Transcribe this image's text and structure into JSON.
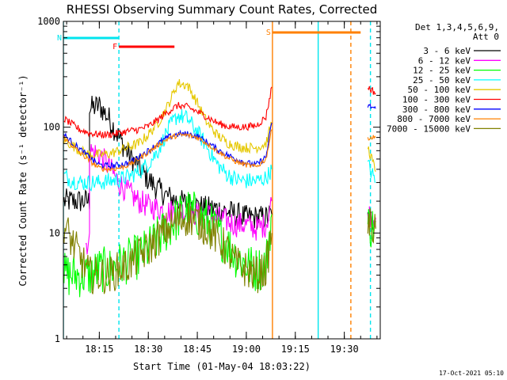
{
  "chart_data": {
    "type": "line",
    "title": "RHESSI Observing Summary Count Rates, Corrected",
    "xlabel": "Start Time (01-May-04 18:03:22)",
    "ylabel": "Corrected Count Rate (s⁻¹ detector⁻¹)",
    "y_scale": "log",
    "ylim": [
      1,
      1000
    ],
    "xlim_minutes_clock": [
      "18:04:00",
      "19:41:00"
    ],
    "x_ticks": [
      "18:15",
      "18:30",
      "18:45",
      "19:00",
      "19:15",
      "19:30"
    ],
    "y_ticks": [
      "1",
      "10",
      "100",
      "1000"
    ],
    "legend_header": [
      "Det 1,3,4,5,6,9,",
      "Att 0"
    ],
    "legend_position": "right",
    "footer_date": "17-Oct-2021 05:10",
    "flags": [
      {
        "label": "N",
        "color": "#00e5ee",
        "start": "18:03",
        "end": "18:21"
      },
      {
        "label": "F",
        "color": "#ff0000",
        "start": "18:21",
        "end": "18:38"
      },
      {
        "label": "S",
        "color": "#ff8000",
        "start": "19:08",
        "end": "19:35"
      }
    ],
    "vertical_lines": [
      {
        "time": "18:04",
        "color": "#00e5ee",
        "style": "solid"
      },
      {
        "time": "18:21",
        "color": "#00e5ee",
        "style": "dashed"
      },
      {
        "time": "19:08",
        "color": "#ff8000",
        "style": "solid"
      },
      {
        "time": "19:22",
        "color": "#00e5ee",
        "style": "solid"
      },
      {
        "time": "19:32",
        "color": "#ff8000",
        "style": "dashed"
      },
      {
        "time": "19:38",
        "color": "#00e5ee",
        "style": "dashed"
      }
    ],
    "series": [
      {
        "name": "3 - 6 keV",
        "color": "#000000",
        "noise": 0.12,
        "segments": [
          [
            [
              18.07,
              20
            ],
            [
              18.2,
              20
            ],
            [
              18.2,
              150
            ],
            [
              18.25,
              160
            ],
            [
              18.3,
              120
            ],
            [
              18.35,
              80
            ],
            [
              18.4,
              55
            ],
            [
              18.45,
              42
            ],
            [
              18.5,
              32
            ],
            [
              18.55,
              26
            ],
            [
              18.6,
              22
            ],
            [
              18.65,
              20
            ],
            [
              18.7,
              19
            ],
            [
              18.75,
              18
            ],
            [
              18.8,
              17
            ],
            [
              18.85,
              17
            ],
            [
              18.9,
              16
            ],
            [
              18.95,
              15
            ],
            [
              19.0,
              14
            ],
            [
              19.05,
              14
            ],
            [
              19.1,
              14
            ],
            [
              19.13,
              15
            ]
          ],
          [
            [
              19.62,
              14
            ],
            [
              19.66,
              13
            ]
          ]
        ]
      },
      {
        "name": "6 - 12 keV",
        "color": "#ff00ff",
        "noise": 0.12,
        "segments": [
          [
            [
              18.18,
              8
            ],
            [
              18.2,
              8
            ],
            [
              18.2,
              60
            ],
            [
              18.25,
              55
            ],
            [
              18.3,
              42
            ],
            [
              18.35,
              30
            ],
            [
              18.4,
              24
            ],
            [
              18.45,
              20
            ],
            [
              18.5,
              18
            ],
            [
              18.55,
              17
            ],
            [
              18.6,
              16
            ],
            [
              18.65,
              16
            ],
            [
              18.7,
              16
            ],
            [
              18.75,
              15
            ],
            [
              18.8,
              15
            ],
            [
              18.85,
              14
            ],
            [
              18.9,
              13
            ],
            [
              18.95,
              12
            ],
            [
              19.0,
              12
            ],
            [
              19.05,
              11
            ],
            [
              19.1,
              12
            ],
            [
              19.13,
              20
            ]
          ],
          [
            [
              19.62,
              15
            ],
            [
              19.66,
              14
            ]
          ]
        ]
      },
      {
        "name": "12 - 25 keV",
        "color": "#00ff00",
        "noise": 0.22,
        "segments": [
          [
            [
              18.07,
              4
            ],
            [
              18.15,
              4
            ],
            [
              18.2,
              4
            ],
            [
              18.25,
              4.5
            ],
            [
              18.3,
              4.5
            ],
            [
              18.35,
              5
            ],
            [
              18.4,
              5.5
            ],
            [
              18.45,
              6
            ],
            [
              18.5,
              7
            ],
            [
              18.55,
              9
            ],
            [
              18.6,
              11
            ],
            [
              18.65,
              14
            ],
            [
              18.7,
              16
            ],
            [
              18.75,
              15
            ],
            [
              18.8,
              13
            ],
            [
              18.85,
              10
            ],
            [
              18.9,
              8
            ],
            [
              18.95,
              6
            ],
            [
              19.0,
              5
            ],
            [
              19.05,
              4.5
            ],
            [
              19.1,
              5
            ],
            [
              19.13,
              15
            ]
          ],
          [
            [
              19.62,
              12
            ],
            [
              19.66,
              11
            ]
          ]
        ]
      },
      {
        "name": "25 - 50 keV",
        "color": "#00ffff",
        "noise": 0.08,
        "segments": [
          [
            [
              18.07,
              35
            ],
            [
              18.1,
              32
            ],
            [
              18.15,
              30
            ],
            [
              18.2,
              30
            ],
            [
              18.25,
              30
            ],
            [
              18.3,
              31
            ],
            [
              18.35,
              32
            ],
            [
              18.4,
              34
            ],
            [
              18.45,
              38
            ],
            [
              18.5,
              45
            ],
            [
              18.55,
              60
            ],
            [
              18.6,
              95
            ],
            [
              18.65,
              130
            ],
            [
              18.7,
              120
            ],
            [
              18.75,
              90
            ],
            [
              18.8,
              65
            ],
            [
              18.85,
              45
            ],
            [
              18.9,
              36
            ],
            [
              18.95,
              32
            ],
            [
              19.0,
              31
            ],
            [
              19.05,
              31
            ],
            [
              19.1,
              33
            ],
            [
              19.13,
              40
            ]
          ],
          [
            [
              19.62,
              45
            ],
            [
              19.66,
              30
            ]
          ]
        ]
      },
      {
        "name": "50 - 100 keV",
        "color": "#e6c800",
        "noise": 0.05,
        "segments": [
          [
            [
              18.07,
              75
            ],
            [
              18.1,
              70
            ],
            [
              18.15,
              60
            ],
            [
              18.2,
              55
            ],
            [
              18.25,
              55
            ],
            [
              18.3,
              56
            ],
            [
              18.35,
              60
            ],
            [
              18.4,
              65
            ],
            [
              18.45,
              70
            ],
            [
              18.5,
              85
            ],
            [
              18.55,
              110
            ],
            [
              18.6,
              160
            ],
            [
              18.65,
              260
            ],
            [
              18.7,
              250
            ],
            [
              18.75,
              170
            ],
            [
              18.8,
              110
            ],
            [
              18.85,
              85
            ],
            [
              18.9,
              72
            ],
            [
              18.95,
              66
            ],
            [
              19.0,
              64
            ],
            [
              19.05,
              64
            ],
            [
              19.1,
              70
            ],
            [
              19.13,
              110
            ]
          ],
          [
            [
              19.62,
              65
            ],
            [
              19.66,
              38
            ]
          ]
        ]
      },
      {
        "name": "100 - 300 keV",
        "color": "#ff0000",
        "noise": 0.035,
        "segments": [
          [
            [
              18.07,
              120
            ],
            [
              18.1,
              110
            ],
            [
              18.15,
              95
            ],
            [
              18.2,
              88
            ],
            [
              18.25,
              85
            ],
            [
              18.3,
              85
            ],
            [
              18.35,
              88
            ],
            [
              18.4,
              92
            ],
            [
              18.45,
              95
            ],
            [
              18.5,
              102
            ],
            [
              18.55,
              118
            ],
            [
              18.6,
              140
            ],
            [
              18.65,
              160
            ],
            [
              18.7,
              155
            ],
            [
              18.75,
              140
            ],
            [
              18.8,
              125
            ],
            [
              18.85,
              110
            ],
            [
              18.9,
              102
            ],
            [
              18.95,
              100
            ],
            [
              19.0,
              101
            ],
            [
              19.05,
              103
            ],
            [
              19.1,
              125
            ],
            [
              19.13,
              240
            ]
          ],
          [
            [
              19.62,
              240
            ],
            [
              19.66,
              210
            ]
          ]
        ]
      },
      {
        "name": "300 - 800 keV",
        "color": "#0000ff",
        "noise": 0.03,
        "segments": [
          [
            [
              18.07,
              85
            ],
            [
              18.1,
              75
            ],
            [
              18.15,
              62
            ],
            [
              18.2,
              52
            ],
            [
              18.25,
              44
            ],
            [
              18.3,
              43
            ],
            [
              18.35,
              44
            ],
            [
              18.4,
              46
            ],
            [
              18.45,
              52
            ],
            [
              18.5,
              60
            ],
            [
              18.55,
              70
            ],
            [
              18.6,
              80
            ],
            [
              18.65,
              86
            ],
            [
              18.7,
              86
            ],
            [
              18.75,
              82
            ],
            [
              18.8,
              72
            ],
            [
              18.85,
              62
            ],
            [
              18.9,
              55
            ],
            [
              18.95,
              50
            ],
            [
              19.0,
              46
            ],
            [
              19.05,
              44
            ],
            [
              19.1,
              52
            ],
            [
              19.13,
              110
            ]
          ],
          [
            [
              19.62,
              160
            ],
            [
              19.66,
              150
            ]
          ]
        ]
      },
      {
        "name": "800 - 7000 keV",
        "color": "#ff8000",
        "noise": 0.025,
        "segments": [
          [
            [
              18.07,
              80
            ],
            [
              18.1,
              70
            ],
            [
              18.15,
              58
            ],
            [
              18.2,
              48
            ],
            [
              18.25,
              41
            ],
            [
              18.3,
              40
            ],
            [
              18.35,
              41
            ],
            [
              18.4,
              44
            ],
            [
              18.45,
              50
            ],
            [
              18.5,
              58
            ],
            [
              18.55,
              68
            ],
            [
              18.6,
              78
            ],
            [
              18.65,
              84
            ],
            [
              18.7,
              84
            ],
            [
              18.75,
              80
            ],
            [
              18.8,
              70
            ],
            [
              18.85,
              60
            ],
            [
              18.9,
              52
            ],
            [
              18.95,
              47
            ],
            [
              19.0,
              44
            ],
            [
              19.05,
              42
            ],
            [
              19.1,
              50
            ],
            [
              19.13,
              95
            ]
          ],
          [
            [
              19.62,
              80
            ],
            [
              19.66,
              80
            ]
          ]
        ]
      },
      {
        "name": "7000 - 15000 keV",
        "color": "#808000",
        "noise": 0.18,
        "segments": [
          [
            [
              18.07,
              12
            ],
            [
              18.1,
              9
            ],
            [
              18.15,
              6
            ],
            [
              18.2,
              4
            ],
            [
              18.25,
              4
            ],
            [
              18.3,
              4
            ],
            [
              18.35,
              4.5
            ],
            [
              18.4,
              5
            ],
            [
              18.45,
              6
            ],
            [
              18.5,
              7
            ],
            [
              18.55,
              9
            ],
            [
              18.6,
              11
            ],
            [
              18.65,
              13
            ],
            [
              18.7,
              14
            ],
            [
              18.75,
              13
            ],
            [
              18.8,
              11
            ],
            [
              18.85,
              9
            ],
            [
              18.9,
              7
            ],
            [
              18.95,
              5
            ],
            [
              19.0,
              4.5
            ],
            [
              19.05,
              4
            ],
            [
              19.1,
              4.5
            ],
            [
              19.13,
              10
            ]
          ],
          [
            [
              19.62,
              12
            ],
            [
              19.66,
              11
            ]
          ]
        ]
      }
    ]
  }
}
